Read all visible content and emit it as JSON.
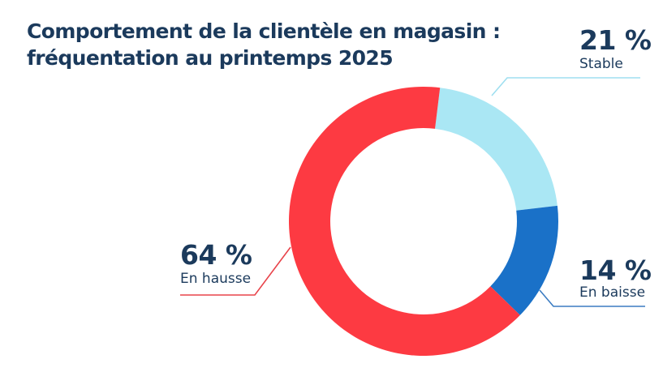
{
  "chart_data": {
    "type": "pie",
    "variant": "donut",
    "title": "Comportement de la clientèle en magasin : fréquentation au printemps 2025",
    "title_lines": [
      "Comportement de la clientèle en magasin :",
      "fréquentation au printemps 2025"
    ],
    "unit": "%",
    "slices": [
      {
        "label": "Stable",
        "value": 21,
        "display": "21 %",
        "color": "#aae7f4",
        "line_color": "#9fdff0"
      },
      {
        "label": "En baisse",
        "value": 14,
        "display": "14 %",
        "color": "#1a71c8",
        "line_color": "#3b7cc2"
      },
      {
        "label": "En hausse",
        "value": 64,
        "display": "64 %",
        "color": "#fd3a42",
        "line_color": "#e8434a"
      }
    ],
    "start_angle_deg": 7
  }
}
